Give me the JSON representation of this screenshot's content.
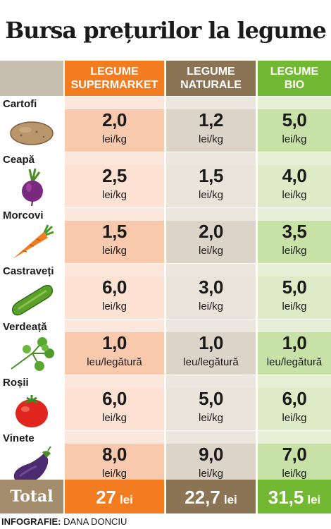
{
  "title": "Bursa prețurilor la legume",
  "headers": {
    "supermarket": [
      "LEGUME",
      "SUPERMARKET"
    ],
    "naturale": [
      "LEGUME",
      "NATURALE"
    ],
    "bio": [
      "LEGUME",
      "BIO"
    ]
  },
  "colors": {
    "supermarket": "#f47c20",
    "naturale": "#8a7454",
    "bio": "#72b832",
    "total_label": "#a38d6c"
  },
  "rows": [
    {
      "name": "Cartofi",
      "icon": "potato-icon",
      "supermarket": "2,0",
      "naturale": "1,2",
      "bio": "5,0",
      "unit_s": "lei/kg",
      "unit_n": "lei/kg",
      "unit_b": "lei/kg"
    },
    {
      "name": "Ceapă",
      "icon": "beet-onion-icon",
      "supermarket": "2,5",
      "naturale": "1,5",
      "bio": "4,0",
      "unit_s": "lei/kg",
      "unit_n": "lei/kg",
      "unit_b": "lei/kg"
    },
    {
      "name": "Morcovi",
      "icon": "carrot-icon",
      "supermarket": "1,5",
      "naturale": "2,0",
      "bio": "3,5",
      "unit_s": "lei/kg",
      "unit_n": "lei/kg",
      "unit_b": "lei/kg"
    },
    {
      "name": "Castraveți",
      "icon": "cucumber-icon",
      "supermarket": "6,0",
      "naturale": "3,0",
      "bio": "5,0",
      "unit_s": "lei/kg",
      "unit_n": "lei/kg",
      "unit_b": "lei/kg"
    },
    {
      "name": "Verdeață",
      "icon": "parsley-icon",
      "supermarket": "1,0",
      "naturale": "1,0",
      "bio": "1,0",
      "unit_s": "leu/legătură",
      "unit_n": "leu/legătură",
      "unit_b": "leu/legătură"
    },
    {
      "name": "Roșii",
      "icon": "tomato-icon",
      "supermarket": "6,0",
      "naturale": "5,0",
      "bio": "6,0",
      "unit_s": "lei/kg",
      "unit_n": "lei/kg",
      "unit_b": "lei/kg"
    },
    {
      "name": "Vinete",
      "icon": "eggplant-icon",
      "supermarket": "8,0",
      "naturale": "9,0",
      "bio": "7,0",
      "unit_s": "lei/kg",
      "unit_n": "lei/kg",
      "unit_b": "lei/kg"
    }
  ],
  "total": {
    "label": "Total",
    "supermarket": "27",
    "naturale": "22,7",
    "bio": "31,5",
    "unit": "lei"
  },
  "credit": {
    "label": "INFOGRAFIE:",
    "author": "DANA DONCIU"
  }
}
